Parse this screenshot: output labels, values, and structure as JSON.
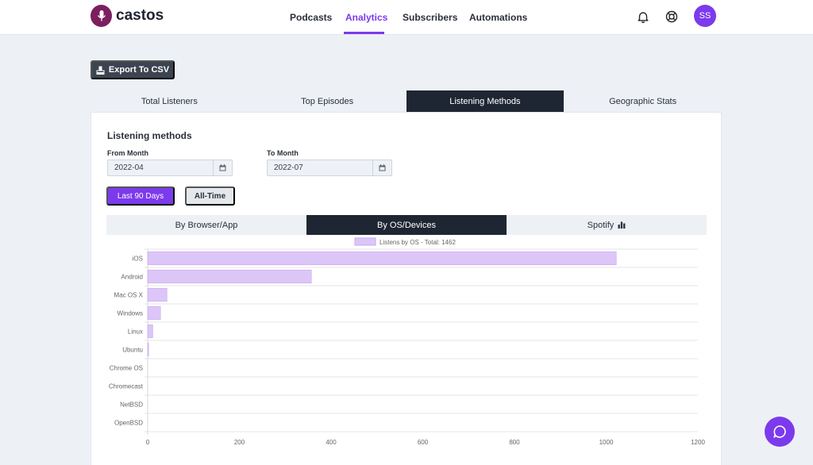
{
  "app": {
    "name": "castos",
    "user_initials": "SS"
  },
  "nav": [
    {
      "label": "Podcasts",
      "active": false
    },
    {
      "label": "Analytics",
      "active": true
    },
    {
      "label": "Subscribers",
      "active": false
    },
    {
      "label": "Automations",
      "active": false
    }
  ],
  "header_icons": [
    "bell-icon",
    "support-icon"
  ],
  "toolbar": {
    "export_label": "Export To CSV"
  },
  "tabs": [
    {
      "label": "Total Listeners",
      "active": false
    },
    {
      "label": "Top Episodes",
      "active": false
    },
    {
      "label": "Listening Methods",
      "active": true
    },
    {
      "label": "Geographic Stats",
      "active": false
    }
  ],
  "panel": {
    "title": "Listening methods",
    "from_label": "From Month",
    "from_value": "2022-04",
    "to_label": "To Month",
    "to_value": "2022-07",
    "range_buttons": [
      "Last 90 Days",
      "All-Time"
    ]
  },
  "subtabs": [
    {
      "label": "By Browser/App",
      "active": false
    },
    {
      "label": "By OS/Devices",
      "active": true
    },
    {
      "label": "Spotify",
      "active": false,
      "icon": "bar-chart-icon"
    }
  ],
  "colors": {
    "accent": "#7c3aed",
    "bar": "#dcc6f7",
    "bar_border": "#c8a6f2",
    "dark_tab": "#1f2633"
  },
  "chart_data": {
    "type": "bar",
    "orientation": "horizontal",
    "categories": [
      "iOS",
      "Android",
      "Mac OS X",
      "Windows",
      "Linux",
      "Ubuntu",
      "Chrome OS",
      "Chromecast",
      "NetBSD",
      "OpenBSD"
    ],
    "series": [
      {
        "name": "Listens by OS - Total: 1462",
        "values": [
          1022,
          357,
          42,
          28,
          11,
          2,
          0,
          0,
          0,
          0
        ]
      }
    ],
    "xlim": [
      0,
      1200
    ],
    "xticks": [
      0,
      200,
      400,
      600,
      800,
      1000,
      1200
    ],
    "grid": true,
    "legend": "top-center"
  }
}
